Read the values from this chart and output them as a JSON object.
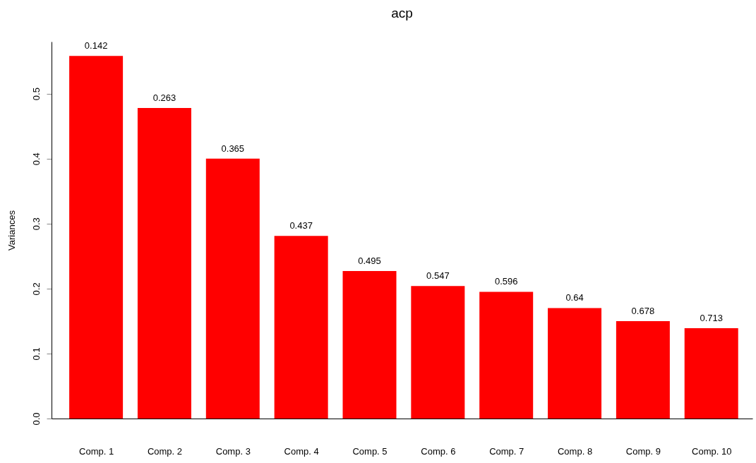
{
  "chart_data": {
    "type": "bar",
    "title": "acp",
    "ylabel": "Variances",
    "categories": [
      "Comp. 1",
      "Comp. 2",
      "Comp. 3",
      "Comp. 4",
      "Comp. 5",
      "Comp. 6",
      "Comp. 7",
      "Comp. 8",
      "Comp. 9",
      "Comp. 10"
    ],
    "values": [
      0.558,
      0.478,
      0.4,
      0.281,
      0.227,
      0.204,
      0.195,
      0.17,
      0.15,
      0.139
    ],
    "annotations": [
      {
        "text": "0.142",
        "x": "Comp. 1",
        "y": 0.558
      },
      {
        "text": "0.263",
        "x": "Comp. 2",
        "y": 0.478
      },
      {
        "text": "0.365",
        "x": "Comp. 3",
        "y": 0.4
      },
      {
        "text": "0.437",
        "x": "Comp. 4",
        "y": 0.281
      },
      {
        "text": "0.495",
        "x": "Comp. 5",
        "y": 0.227
      },
      {
        "text": "0.547",
        "x": "Comp. 6",
        "y": 0.204
      },
      {
        "text": "0.596",
        "x": "Comp. 7",
        "y": 0.195
      },
      {
        "text": "0.64",
        "x": "Comp. 8",
        "y": 0.17
      },
      {
        "text": "0.678",
        "x": "Comp. 9",
        "y": 0.15
      },
      {
        "text": "0.713",
        "x": "Comp. 10",
        "y": 0.139
      }
    ],
    "color": "#ff0000",
    "ylim": [
      0,
      0.58
    ],
    "yticks": [
      {
        "value": 0,
        "label": "0.0"
      },
      0.1,
      0.2,
      0.3,
      0.4,
      0.5
    ],
    "grid": false
  }
}
